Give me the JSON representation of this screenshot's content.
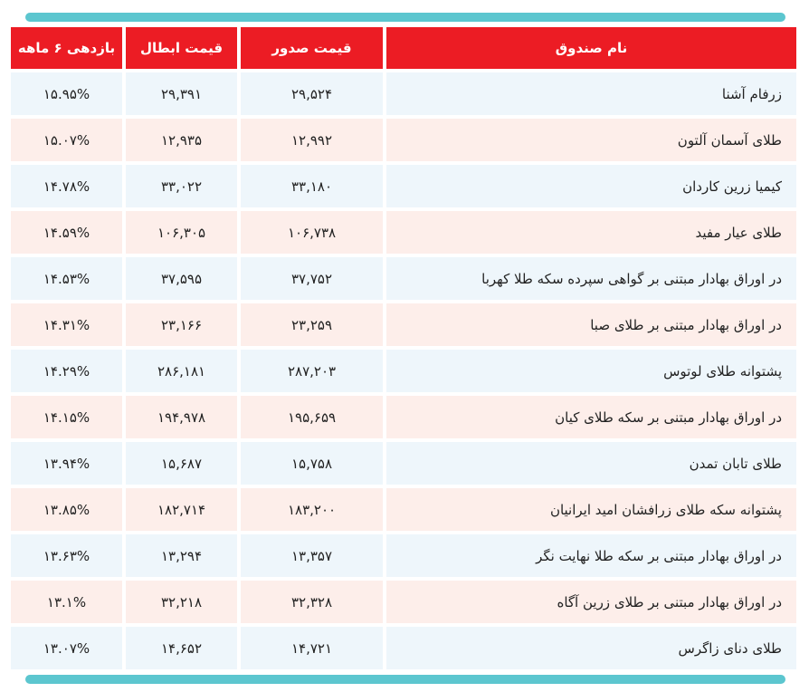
{
  "table": {
    "header": [
      "نام صندوق",
      "قیمت صدور",
      "قیمت ابطال",
      "بازدهی ۶ ماهه"
    ],
    "rows": [
      [
        "زرفام آشنا",
        "۲۹,۵۲۴",
        "۲۹,۳۹۱",
        "۱۵.۹۵%"
      ],
      [
        "طلای آسمان آلتون",
        "۱۲,۹۹۲",
        "۱۲,۹۳۵",
        "۱۵.۰۷%"
      ],
      [
        "کیمیا زرین کاردان",
        "۳۳,۱۸۰",
        "۳۳,۰۲۲",
        "۱۴.۷۸%"
      ],
      [
        "طلای عیار مفید",
        "۱۰۶,۷۳۸",
        "۱۰۶,۳۰۵",
        "۱۴.۵۹%"
      ],
      [
        "در اوراق بهادار مبتنی بر گواهی سپرده سکه طلا کهربا",
        "۳۷,۷۵۲",
        "۳۷,۵۹۵",
        "۱۴.۵۳%"
      ],
      [
        "در اوراق بهادار مبتنی بر طلای صبا",
        "۲۳,۲۵۹",
        "۲۳,۱۶۶",
        "۱۴.۳۱%"
      ],
      [
        "پشتوانه طلای لوتوس",
        "۲۸۷,۲۰۳",
        "۲۸۶,۱۸۱",
        "۱۴.۲۹%"
      ],
      [
        "در اوراق بهادار مبتنی بر سکه طلای کیان",
        "۱۹۵,۶۵۹",
        "۱۹۴,۹۷۸",
        "۱۴.۱۵%"
      ],
      [
        "طلای تابان تمدن",
        "۱۵,۷۵۸",
        "۱۵,۶۸۷",
        "۱۳.۹۴%"
      ],
      [
        "پشتوانه سکه طلای زرافشان امید ایرانیان",
        "۱۸۳,۲۰۰",
        "۱۸۲,۷۱۴",
        "۱۳.۸۵%"
      ],
      [
        "در اوراق بهادار مبتنی بر سکه طلا نهایت نگر",
        "۱۳,۳۵۷",
        "۱۳,۲۹۴",
        "۱۳.۶۳%"
      ],
      [
        "در اوراق بهادار مبتنی بر طلای زرین آگاه",
        "۳۲,۳۲۸",
        "۳۲,۲۱۸",
        "۱۳.۱%"
      ],
      [
        "طلای دنای زاگرس",
        "۱۴,۷۲۱",
        "۱۴,۶۵۲",
        "۱۳.۰۷%"
      ]
    ]
  }
}
